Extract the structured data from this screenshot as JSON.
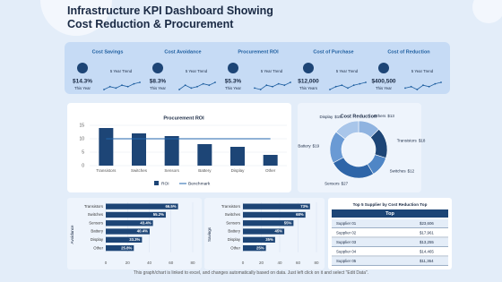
{
  "title": "Infrastructure KPI Dashboard Showing Cost Reduction & Procurement",
  "kpis": [
    {
      "label": "Cost Savings",
      "value": "$14.3%",
      "period": "This Year",
      "trend_label": "5 Year Trend",
      "trend": [
        3,
        4,
        3.5,
        4.5,
        4,
        5,
        5.5
      ]
    },
    {
      "label": "Cost Avoidance",
      "value": "$8.3%",
      "period": "This Year",
      "trend_label": "5 Year Trend",
      "trend": [
        3,
        4.5,
        3.5,
        4,
        5,
        4.5,
        5.5
      ]
    },
    {
      "label": "Procurement ROI",
      "value": "$5.3%",
      "period": "This Year",
      "trend_label": "5 Year Trend",
      "trend": [
        3.5,
        3,
        4.5,
        4,
        5,
        4.5,
        5.5
      ]
    },
    {
      "label": "Cost of Purchase",
      "value": "$12,000",
      "period": "This Years",
      "trend_label": "5 Year Trend",
      "trend": [
        3,
        4,
        4.5,
        3.5,
        4.5,
        5,
        5.5
      ]
    },
    {
      "label": "Cost of Reduction",
      "value": "$400,500",
      "period": "This Year",
      "trend_label": "5 Year Trend",
      "trend": [
        3.5,
        4,
        3,
        4.5,
        4,
        5,
        5.5
      ]
    }
  ],
  "chart_data": [
    {
      "type": "bar",
      "title": "Procurement ROI",
      "categories": [
        "Transistors",
        "Switches",
        "Sensors",
        "Battery",
        "Display",
        "Other"
      ],
      "series": [
        {
          "name": "ROI",
          "color": "#1d4576",
          "values": [
            14,
            12,
            11,
            8,
            7,
            4
          ]
        },
        {
          "name": "Benchmark",
          "color": "#2166ad",
          "type": "line",
          "values": [
            10,
            10,
            10,
            10,
            10,
            10
          ]
        }
      ],
      "ylim": [
        0,
        15
      ],
      "yticks": [
        0,
        5,
        10,
        15
      ]
    },
    {
      "type": "pie",
      "title": "Cost Reduction",
      "categories": [
        "Others",
        "Transistors",
        "Switches",
        "Sensors",
        "Battery",
        "Display"
      ],
      "values": [
        13,
        18,
        12,
        27,
        19,
        15
      ],
      "value_labels": [
        "$13",
        "$18",
        "$12",
        "$27",
        "$19",
        "$15"
      ],
      "colors": [
        "#8fb3e0",
        "#1d4576",
        "#4f86c6",
        "#2e65a8",
        "#6a9ad4",
        "#a9c6ea"
      ]
    },
    {
      "type": "hbar",
      "axis_label": "Avoidance",
      "categories": [
        "Transistors",
        "Switches",
        "Sensors",
        "Battery",
        "Display",
        "Other"
      ],
      "values": [
        66.5,
        55.2,
        43.4,
        40.4,
        33.3,
        25.8
      ],
      "value_labels": [
        "66.5%",
        "55.2%",
        "43.4%",
        "40.4%",
        "33.3%",
        "25.8%"
      ],
      "color": "#1d4576",
      "xlim": [
        0,
        80
      ],
      "xticks": [
        0,
        20,
        40,
        60,
        80
      ]
    },
    {
      "type": "hbar",
      "axis_label": "Savings",
      "categories": [
        "Transistors",
        "Switches",
        "Sensors",
        "Battery",
        "Display",
        "Other"
      ],
      "values": [
        73,
        68,
        55,
        45,
        35,
        25
      ],
      "value_labels": [
        "73%",
        "68%",
        "55%",
        "45%",
        "35%",
        "25%"
      ],
      "color": "#1d4576",
      "xlim": [
        0,
        80
      ],
      "xticks": [
        0,
        20,
        40,
        60,
        80
      ]
    }
  ],
  "table": {
    "title": "Top 5 Supplier by Cost Reduction Top",
    "header": "Top",
    "rows": [
      [
        "Supplier 01",
        "$23,606"
      ],
      [
        "Supplier 02",
        "$17,961"
      ],
      [
        "Supplier 03",
        "$13,255"
      ],
      [
        "Supplier 04",
        "$14,465"
      ],
      [
        "Supplier 05",
        "$11,364"
      ]
    ]
  },
  "footer": "This graph/chart is linked to excel, and changes automatically based on data. Just left click on it and select \"Edit Data\"."
}
